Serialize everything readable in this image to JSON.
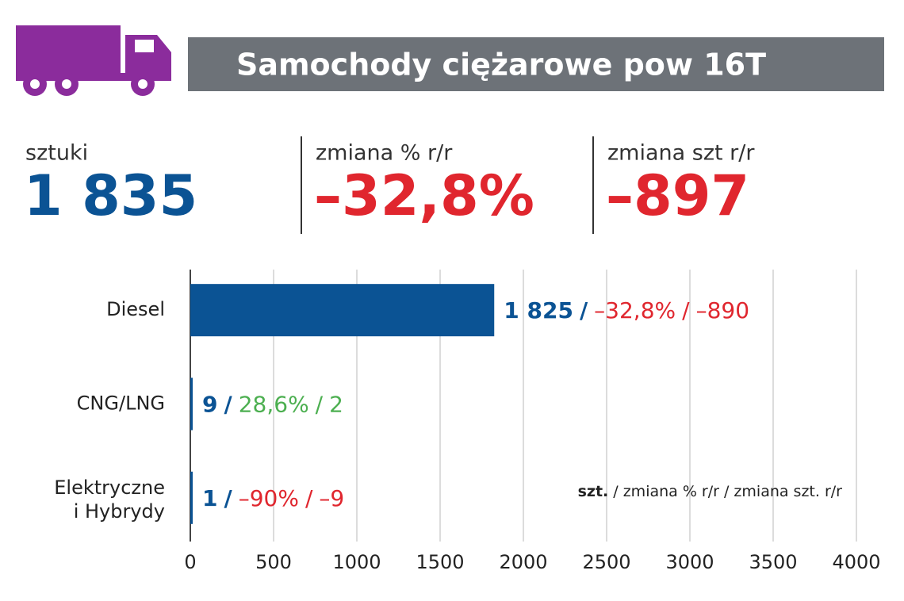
{
  "header": {
    "title": "Samochody ciężarowe pow 16T"
  },
  "summary": [
    {
      "label": "sztuki",
      "value": "1 835"
    },
    {
      "label": "zmiana % r/r",
      "value": "–32,8%"
    },
    {
      "label": "zmiana szt r/r",
      "value": "–897"
    }
  ],
  "chart_data": {
    "type": "bar",
    "orientation": "horizontal",
    "categories": [
      "Diesel",
      "CNG/LNG",
      "Elektryczne i Hybrydy"
    ],
    "values": [
      1825,
      9,
      1
    ],
    "value_labels": [
      "1 825",
      "9",
      "1"
    ],
    "color": "#0b5394",
    "change_pct": [
      -32.8,
      28.6,
      -90
    ],
    "change_pct_labels": [
      "–32,8%",
      "28,6%",
      "–90%"
    ],
    "change_units": [
      -890,
      2,
      -9
    ],
    "change_units_labels": [
      "–890",
      "2",
      "–9"
    ],
    "label_separator": "/",
    "positive_color": "#4caf50",
    "negative_color": "#e0262e",
    "xlim": [
      0,
      4000
    ],
    "xticks": [
      0,
      500,
      1000,
      1500,
      2000,
      2500,
      3000,
      3500,
      4000
    ],
    "grid": true,
    "legend_note": {
      "bold": "szt.",
      "rest": "/ zmiana % r/r / zmiana szt. r/r"
    }
  }
}
